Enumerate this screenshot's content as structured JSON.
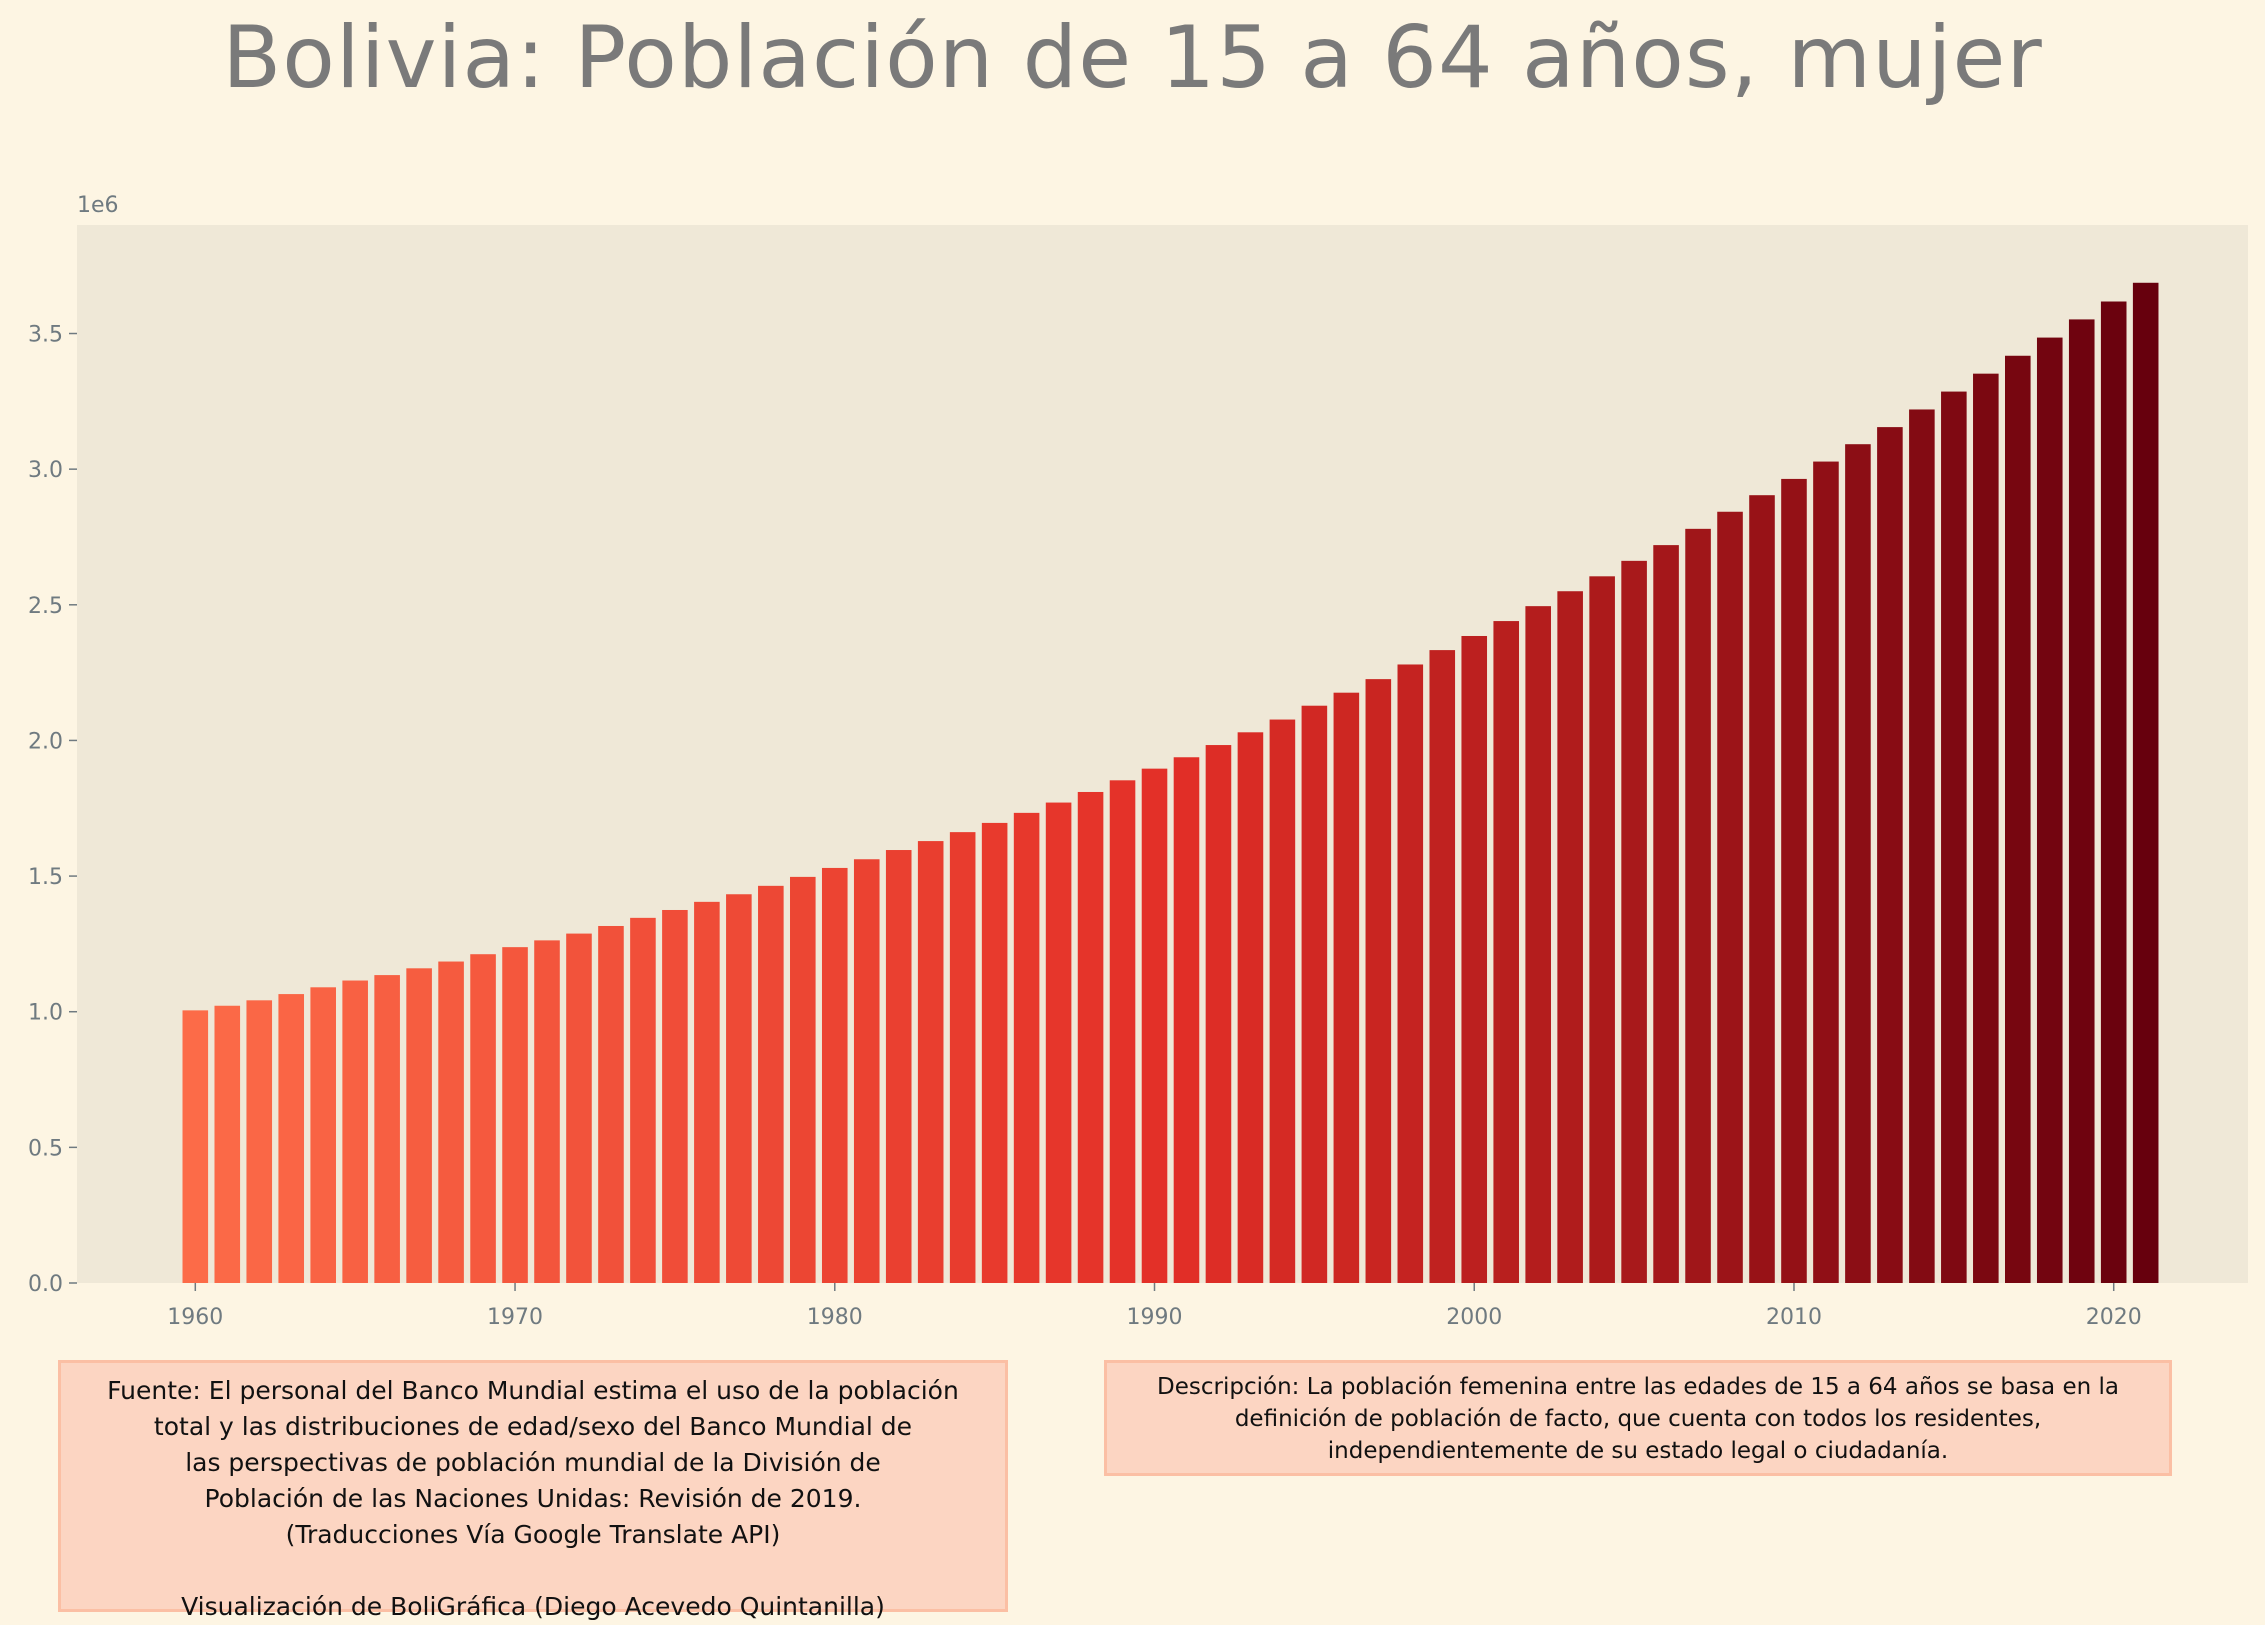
{
  "title": "Bolivia:  Población de 15 a 64 años, mujer",
  "source_note": "Fuente: El personal del Banco Mundial estima el uso de la población\ntotal y las distribuciones de edad/sexo del Banco Mundial de\nlas perspectivas de población mundial de la División de\nPoblación de las Naciones Unidas: Revisión de 2019.\n(Traducciones Vía Google Translate API)\n\nVisualización de BoliGráfica (Diego Acevedo Quintanilla)",
  "description_note": "Descripción: La población femenina entre las edades de 15 a 64 años se basa en la\ndefinición de población de facto, que cuenta con todos los residentes,\nindependientemente de su estado legal o ciudadanía.",
  "colors": {
    "background": "#fdf5e3",
    "plot_background": "#efe8d7",
    "bar_start": "#fc6b48",
    "bar_mid": "#e32f27",
    "bar_end": "#67000d",
    "note_background": "#fcd5c2",
    "note_border": "#fbbfa4"
  },
  "chart_data": {
    "type": "bar",
    "title": "Bolivia:  Población de 15 a 64 años, mujer",
    "xlabel": "",
    "ylabel": "",
    "y_offset_label": "1e6",
    "xlim": [
      1956.3,
      2024.2
    ],
    "ylim": [
      0,
      3.9
    ],
    "x_ticks": [
      1960,
      1970,
      1980,
      1990,
      2000,
      2010,
      2020
    ],
    "y_ticks": [
      0.0,
      0.5,
      1.0,
      1.5,
      2.0,
      2.5,
      3.0,
      3.5
    ],
    "y_tick_labels": [
      "0.0",
      "0.5",
      "1.0",
      "1.5",
      "2.0",
      "2.5",
      "3.0",
      "3.5"
    ],
    "grid": false,
    "x": [
      1960,
      1961,
      1962,
      1963,
      1964,
      1965,
      1966,
      1967,
      1968,
      1969,
      1970,
      1971,
      1972,
      1973,
      1974,
      1975,
      1976,
      1977,
      1978,
      1979,
      1980,
      1981,
      1982,
      1983,
      1984,
      1985,
      1986,
      1987,
      1988,
      1989,
      1990,
      1991,
      1992,
      1993,
      1994,
      1995,
      1996,
      1997,
      1998,
      1999,
      2000,
      2001,
      2002,
      2003,
      2004,
      2005,
      2006,
      2007,
      2008,
      2009,
      2010,
      2011,
      2012,
      2013,
      2014,
      2015,
      2016,
      2017,
      2018,
      2019,
      2020,
      2021
    ],
    "values": [
      1.005,
      1.022,
      1.042,
      1.065,
      1.09,
      1.115,
      1.135,
      1.16,
      1.185,
      1.212,
      1.238,
      1.263,
      1.288,
      1.316,
      1.346,
      1.375,
      1.405,
      1.433,
      1.464,
      1.497,
      1.53,
      1.562,
      1.596,
      1.629,
      1.662,
      1.696,
      1.733,
      1.771,
      1.81,
      1.853,
      1.896,
      1.938,
      1.983,
      2.03,
      2.077,
      2.128,
      2.176,
      2.226,
      2.28,
      2.333,
      2.385,
      2.44,
      2.495,
      2.55,
      2.605,
      2.662,
      2.72,
      2.78,
      2.843,
      2.904,
      2.964,
      3.028,
      3.092,
      3.155,
      3.22,
      3.286,
      3.352,
      3.418,
      3.485,
      3.552,
      3.618,
      3.687
    ]
  }
}
